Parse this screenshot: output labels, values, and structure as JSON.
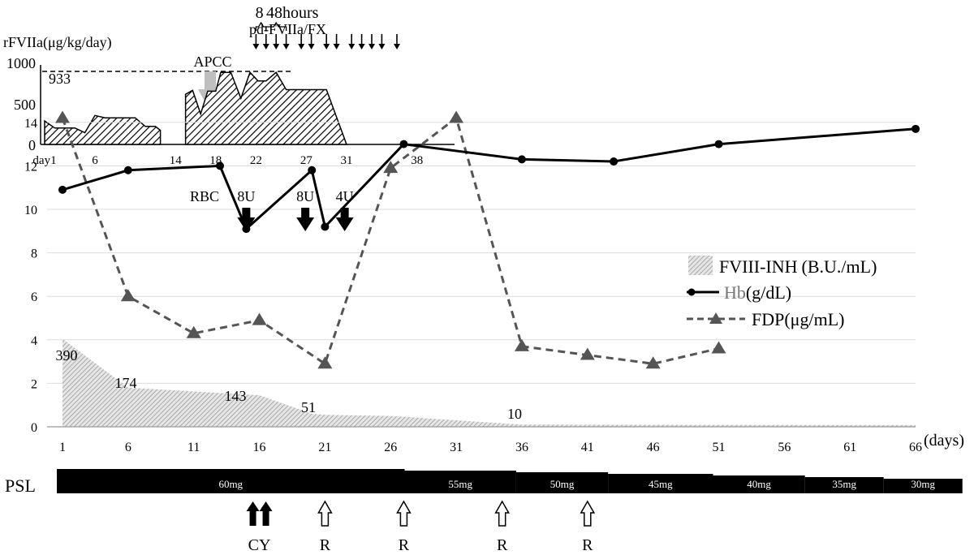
{
  "chart_data": [
    {
      "type": "area",
      "ylabel": "rFVIIa(μg/kg/day)",
      "ylim": [
        0,
        1000
      ],
      "y_ticks": [
        "1000",
        "500",
        "0"
      ],
      "x_ticks": [
        {
          "day": 1,
          "label": "day1"
        },
        {
          "day": 6,
          "label": "6"
        },
        {
          "day": 14,
          "label": "14"
        },
        {
          "day": 18,
          "label": "18"
        },
        {
          "day": 22,
          "label": "22"
        },
        {
          "day": 27,
          "label": "27"
        },
        {
          "day": 31,
          "label": "31"
        },
        {
          "day": 38,
          "label": "38"
        }
      ],
      "reference_value": {
        "value": 933,
        "label": "933"
      },
      "apcc_label": "APCC",
      "apcc_day": 13.5,
      "rfviia_segments": [
        [
          [
            1,
            0
          ],
          [
            1,
            300
          ],
          [
            2,
            210
          ],
          [
            3,
            210
          ],
          [
            4,
            210
          ],
          [
            5,
            150
          ],
          [
            6,
            370
          ],
          [
            7,
            340
          ],
          [
            8,
            340
          ],
          [
            9,
            340
          ],
          [
            10,
            340
          ],
          [
            11,
            230
          ],
          [
            12,
            230
          ],
          [
            12.5,
            180
          ],
          [
            12.5,
            0
          ]
        ],
        [
          [
            15,
            0
          ],
          [
            15,
            640
          ],
          [
            15.7,
            690
          ],
          [
            16.5,
            390
          ],
          [
            17.2,
            680
          ],
          [
            18,
            680
          ],
          [
            18.5,
            920
          ],
          [
            19.5,
            920
          ],
          [
            20.5,
            590
          ],
          [
            21.4,
            920
          ],
          [
            22.2,
            810
          ],
          [
            23,
            810
          ],
          [
            24,
            920
          ],
          [
            25,
            700
          ],
          [
            29,
            700
          ],
          [
            31,
            0
          ]
        ]
      ],
      "pd_fviia_label": "pd-FVIIa/FX",
      "pd_fviia_days": [
        22,
        23,
        24,
        25,
        26.5,
        27.5,
        29,
        30,
        31.5,
        32.5,
        33.5,
        34.5,
        36
      ],
      "interval_labels": [
        {
          "label": "8",
          "from_day": 22,
          "to_day": 23
        },
        {
          "label": "48hours",
          "from_day": 23,
          "to_day": 25
        }
      ]
    },
    {
      "type": "line",
      "xlabel": "(days)",
      "ylim": [
        0,
        14
      ],
      "x_ticks": [
        1,
        6,
        11,
        16,
        21,
        26,
        31,
        36,
        41,
        46,
        51,
        56,
        61,
        66
      ],
      "y_ticks": [
        0,
        2,
        4,
        6,
        8,
        10,
        12,
        14
      ],
      "series": [
        {
          "name": "Hb",
          "unit": "(g/dL)",
          "color": "#000000",
          "x": [
            1,
            6,
            13,
            15,
            20,
            21,
            27,
            36,
            43,
            51,
            66
          ],
          "y": [
            10.9,
            11.8,
            12.0,
            9.1,
            11.8,
            9.2,
            13.0,
            12.3,
            12.2,
            13.0,
            13.7
          ]
        },
        {
          "name": "FDP",
          "unit": "(μg/mL)",
          "color": "#555555",
          "x": [
            1,
            6,
            11,
            16,
            21,
            26,
            31,
            36,
            41,
            46,
            51
          ],
          "y": [
            14.2,
            6.0,
            4.3,
            4.9,
            2.9,
            11.9,
            14.2,
            3.7,
            3.3,
            2.9,
            3.6
          ]
        },
        {
          "name": "FVIII-INH",
          "unit": "(B.U./mL)",
          "color": "#9a9a9a",
          "x": [
            1,
            6,
            16,
            20,
            21,
            26,
            36,
            66
          ],
          "y": [
            4.05,
            1.8,
            1.45,
            0.6,
            0.55,
            0.5,
            0.1,
            0.08
          ],
          "point_labels": [
            {
              "x": 1,
              "label": "390"
            },
            {
              "x": 6,
              "label": "174"
            },
            {
              "x": 16,
              "label": "143"
            },
            {
              "x": 21,
              "label": "51"
            },
            {
              "x": 36,
              "label": "10"
            }
          ]
        }
      ],
      "rbc": {
        "label": "RBC",
        "transfusions": [
          {
            "day": 15,
            "label": "8U"
          },
          {
            "day": 19.5,
            "label": "8U"
          },
          {
            "day": 22.5,
            "label": "4U"
          }
        ]
      }
    },
    {
      "type": "bar",
      "label": "PSL",
      "segments": [
        {
          "label": "60mg",
          "from_day": 0,
          "to_day": 26.5
        },
        {
          "label": "55mg",
          "from_day": 26.5,
          "to_day": 35
        },
        {
          "label": "50mg",
          "from_day": 35,
          "to_day": 42
        },
        {
          "label": "45mg",
          "from_day": 42,
          "to_day": 50
        },
        {
          "label": "40mg",
          "from_day": 50,
          "to_day": 57
        },
        {
          "label": "35mg",
          "from_day": 57,
          "to_day": 63
        },
        {
          "label": "30mg",
          "from_day": 63,
          "to_day": 69
        }
      ],
      "cy": {
        "label": "CY",
        "day": 16
      },
      "r_markers": [
        {
          "day": 21,
          "label": "R"
        },
        {
          "day": 27,
          "label": "R"
        },
        {
          "day": 34.5,
          "label": "R"
        },
        {
          "day": 41,
          "label": "R"
        }
      ]
    }
  ]
}
